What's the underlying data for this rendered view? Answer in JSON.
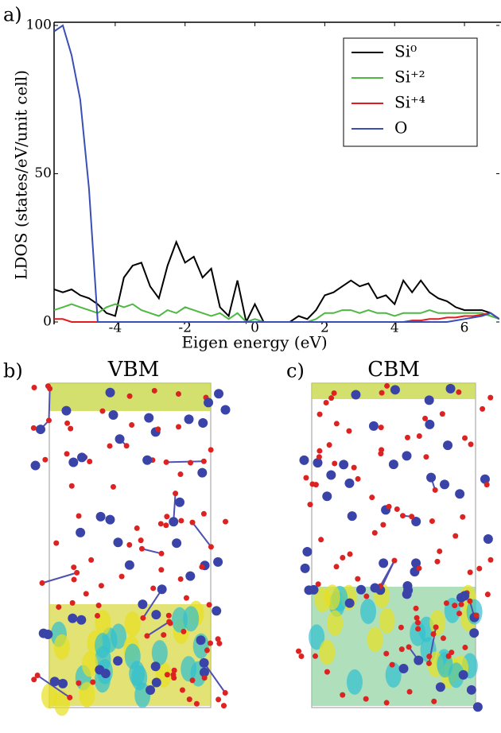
{
  "chart_data": {
    "type": "line",
    "panel_label": "a)",
    "xlabel": "Eigen energy (eV)",
    "ylabel": "LDOS (states/eV/unit cell)",
    "xlim": [
      -5.75,
      7.0
    ],
    "ylim": [
      0,
      100
    ],
    "xticks": [
      -4,
      -2,
      0,
      2,
      4,
      6
    ],
    "yticks": [
      0,
      50,
      100
    ],
    "legend": "upper right",
    "x": [
      -5.75,
      -5.5,
      -5.25,
      -5.0,
      -4.75,
      -4.5,
      -4.25,
      -4.0,
      -3.75,
      -3.5,
      -3.25,
      -3.0,
      -2.75,
      -2.5,
      -2.25,
      -2.0,
      -1.75,
      -1.5,
      -1.25,
      -1.0,
      -0.75,
      -0.5,
      -0.25,
      0.0,
      0.25,
      0.5,
      0.75,
      1.0,
      1.25,
      1.5,
      1.75,
      2.0,
      2.25,
      2.5,
      2.75,
      3.0,
      3.25,
      3.5,
      3.75,
      4.0,
      4.25,
      4.5,
      4.75,
      5.0,
      5.25,
      5.5,
      5.75,
      6.0,
      6.25,
      6.5,
      6.75,
      7.0
    ],
    "series": [
      {
        "name": "Si⁰",
        "color": "#000000",
        "values": [
          11,
          10,
          11,
          9,
          8,
          6,
          3,
          2,
          15,
          19,
          20,
          12,
          8,
          19,
          27,
          20,
          22,
          15,
          18,
          5,
          2,
          14,
          0,
          6,
          0,
          0,
          0,
          0,
          2,
          1,
          4,
          9,
          10,
          12,
          14,
          12,
          13,
          8,
          9,
          6,
          14,
          10,
          14,
          10,
          8,
          7,
          5,
          4,
          4,
          4,
          3,
          1
        ]
      },
      {
        "name": "Si⁺²",
        "color": "#4fb843",
        "values": [
          4,
          5,
          6,
          5,
          4,
          3,
          5,
          6,
          5,
          6,
          4,
          3,
          2,
          4,
          3,
          5,
          4,
          3,
          2,
          3,
          1,
          3,
          0,
          1,
          0,
          0,
          0,
          0,
          0,
          0,
          1,
          3,
          3,
          4,
          4,
          3,
          4,
          3,
          3,
          2,
          3,
          3,
          3,
          4,
          3,
          3,
          3,
          3,
          3,
          3,
          2,
          1
        ]
      },
      {
        "name": "Si⁺⁴",
        "color": "#e41a1c",
        "values": [
          1,
          1,
          0,
          0,
          0,
          0,
          0,
          0,
          0,
          0,
          0,
          0,
          0,
          0,
          0,
          0,
          0,
          0,
          0,
          0,
          0,
          0,
          0,
          0,
          0,
          0,
          0,
          0,
          0,
          0,
          0,
          0,
          0,
          0,
          0,
          0,
          0,
          0,
          0,
          0,
          0,
          0.5,
          0.5,
          1,
          1,
          1.5,
          1.5,
          2,
          2,
          2.5,
          3,
          1
        ]
      },
      {
        "name": "O",
        "color": "#3a4fb5",
        "values": [
          98,
          100,
          90,
          75,
          45,
          0,
          0,
          0,
          0,
          0,
          0,
          0,
          0,
          0,
          0,
          0,
          0,
          0,
          0,
          0,
          0,
          0,
          0,
          0,
          0,
          0,
          0,
          0,
          0,
          0,
          0,
          0,
          0,
          0,
          0,
          0,
          0,
          0,
          0,
          0,
          0,
          0,
          0,
          0,
          0,
          0,
          0.5,
          1,
          1.5,
          2,
          3,
          1
        ]
      }
    ]
  },
  "panels": [
    {
      "label": "b)",
      "title": "VBM"
    },
    {
      "label": "c)",
      "title": "CBM"
    }
  ]
}
